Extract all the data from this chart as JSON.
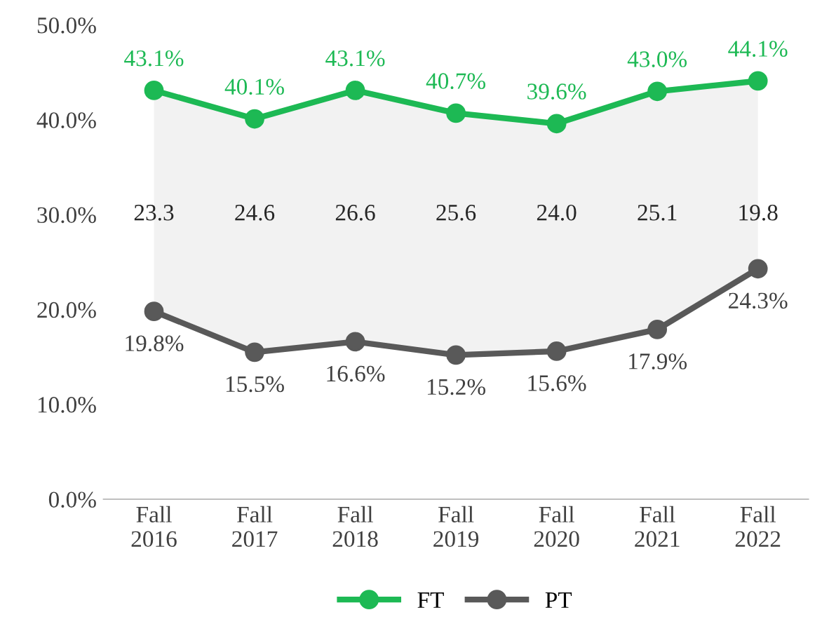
{
  "chart_data": {
    "type": "line",
    "categories": [
      "Fall\n2016",
      "Fall\n2017",
      "Fall\n2018",
      "Fall\n2019",
      "Fall\n2020",
      "Fall\n2021",
      "Fall\n2022"
    ],
    "series": [
      {
        "name": "FT",
        "color": "#1db954",
        "values": [
          43.1,
          40.1,
          43.1,
          40.7,
          39.6,
          43.0,
          44.1
        ],
        "value_labels": [
          "43.1%",
          "40.1%",
          "43.1%",
          "40.7%",
          "39.6%",
          "43.0%",
          "44.1%"
        ],
        "lower": [
          19.8,
          15.5,
          16.6,
          15.2,
          15.6,
          17.9,
          24.3
        ],
        "upper": [
          43.1,
          40.1,
          43.1,
          40.7,
          39.6,
          43.0,
          44.1
        ]
      },
      {
        "name": "PT",
        "color": "#595959",
        "values": [
          19.8,
          15.5,
          16.6,
          15.2,
          15.6,
          17.9,
          24.3
        ],
        "value_labels": [
          "19.8%",
          "15.5%",
          "16.6%",
          "15.2%",
          "15.6%",
          "17.9%",
          "24.3%"
        ]
      }
    ],
    "annotations": [
      "23.3",
      "24.6",
      "26.6",
      "25.6",
      "24.0",
      "25.1",
      "19.8"
    ],
    "ylim": [
      0,
      50
    ],
    "yticks": [
      {
        "value": 0,
        "label": "0.0%"
      },
      {
        "value": 10,
        "label": "10.0%"
      },
      {
        "value": 20,
        "label": "20.0%"
      },
      {
        "value": 30,
        "label": "30.0%"
      },
      {
        "value": 40,
        "label": "40.0%"
      },
      {
        "value": 50,
        "label": "50.0%"
      }
    ],
    "marker": "circle",
    "line_style": "solid",
    "grid": false,
    "legend": "bottom"
  }
}
